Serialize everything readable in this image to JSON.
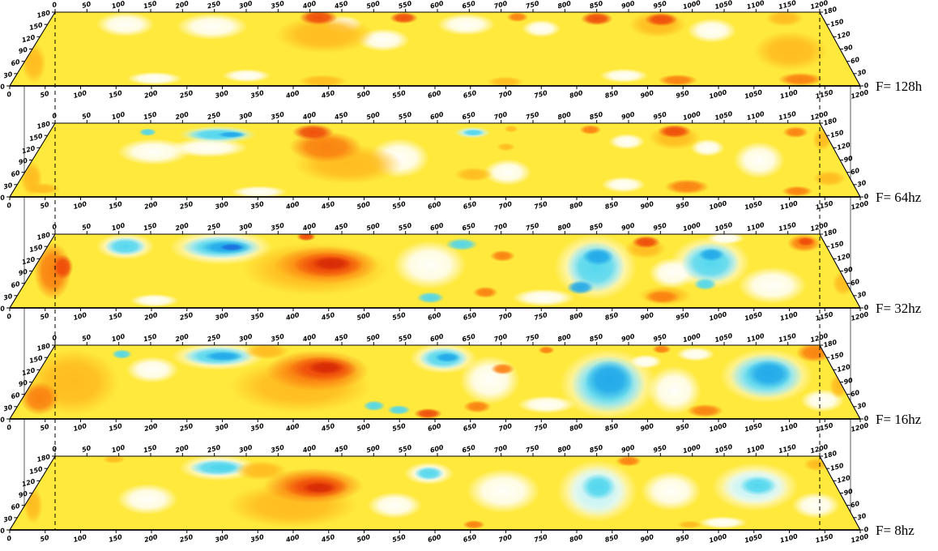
{
  "figure": {
    "description": "Stack of five spectral-decomposition amplitude slices at decreasing frequency",
    "panel_labels": [
      "F= 128h",
      "F= 64hz",
      "F= 32hz",
      "F= 16hz",
      "F= 8hz"
    ]
  },
  "axes": {
    "x": {
      "min": 0,
      "max": 1200,
      "step": 50,
      "ticks": [
        0,
        50,
        100,
        150,
        200,
        250,
        300,
        350,
        400,
        450,
        500,
        550,
        600,
        650,
        700,
        750,
        800,
        850,
        900,
        950,
        1000,
        1050,
        1100,
        1150,
        1200
      ]
    },
    "y": {
      "min": 0,
      "max": 180,
      "step": 30,
      "ticks": [
        0,
        30,
        60,
        90,
        120,
        150,
        180
      ]
    }
  },
  "reference_lines": {
    "style": "dashed-vertical",
    "at_top_axis_x": [
      0,
      1200
    ]
  },
  "colors": {
    "base": "#FFE93C",
    "white_zone": "#FFFFFF",
    "hot": {
      "h1": "#FFBB20",
      "h2": "#FA7F10",
      "h3": "#EE4A0A",
      "h4": "#D62A06"
    },
    "cold": {
      "c1": "#C8F4F6",
      "c2": "#50D6EE",
      "c3": "#21A8E9",
      "c4": "#1B70DF"
    },
    "axis": "#000000"
  },
  "anomaly_format": "[kind,x,y,rx,ry] in data units; kind h=hot(orange/red) c=cold(cyan/blue), higher digit = stronger",
  "chart_data": [
    {
      "type": "heatmap",
      "label": "F= 128h",
      "whites": [
        [
          120,
          150,
          45,
          28
        ],
        [
          255,
          145,
          55,
          30
        ],
        [
          455,
          150,
          30,
          20
        ],
        [
          520,
          112,
          40,
          26
        ],
        [
          645,
          150,
          45,
          25
        ],
        [
          760,
          140,
          30,
          20
        ],
        [
          1020,
          135,
          38,
          28
        ],
        [
          200,
          18,
          40,
          15
        ],
        [
          330,
          25,
          35,
          15
        ],
        [
          870,
          25,
          35,
          16
        ]
      ],
      "features": [
        [
          "h1",
          15,
          55,
          18,
          45
        ],
        [
          "h1",
          430,
          125,
          75,
          42
        ],
        [
          "h3",
          415,
          167,
          30,
          17
        ],
        [
          "h3",
          548,
          166,
          22,
          13
        ],
        [
          "h2",
          725,
          168,
          17,
          11
        ],
        [
          "h3",
          848,
          164,
          25,
          15
        ],
        [
          "h1",
          940,
          150,
          45,
          30
        ],
        [
          "h3",
          948,
          162,
          26,
          15
        ],
        [
          "h1",
          1125,
          85,
          55,
          45
        ],
        [
          "h1",
          1140,
          165,
          30,
          18
        ],
        [
          "h1",
          440,
          12,
          35,
          14
        ],
        [
          "h1",
          700,
          10,
          26,
          12
        ],
        [
          "h2",
          945,
          14,
          28,
          13
        ],
        [
          "h2",
          1120,
          16,
          32,
          15
        ]
      ]
    },
    {
      "type": "heatmap",
      "label": "F= 64hz",
      "whites": [
        [
          175,
          110,
          55,
          30
        ],
        [
          255,
          120,
          60,
          22
        ],
        [
          545,
          95,
          45,
          45
        ],
        [
          705,
          60,
          35,
          30
        ],
        [
          890,
          135,
          28,
          18
        ],
        [
          1010,
          120,
          26,
          20
        ],
        [
          1080,
          90,
          38,
          42
        ],
        [
          870,
          30,
          32,
          18
        ],
        [
          350,
          12,
          40,
          14
        ]
      ],
      "features": [
        [
          "c1",
          262,
          152,
          60,
          20
        ],
        [
          "c2",
          262,
          152,
          48,
          14
        ],
        [
          "c3",
          283,
          152,
          22,
          7
        ],
        [
          "c2",
          152,
          158,
          14,
          9
        ],
        [
          "c1",
          655,
          157,
          28,
          13
        ],
        [
          "c2",
          656,
          157,
          18,
          8
        ],
        [
          "h1",
          470,
          80,
          80,
          45
        ],
        [
          "h2",
          432,
          122,
          55,
          35
        ],
        [
          "h3",
          408,
          158,
          32,
          18
        ],
        [
          "h2",
          838,
          164,
          17,
          11
        ],
        [
          "h1",
          965,
          145,
          40,
          28
        ],
        [
          "h3",
          968,
          160,
          26,
          15
        ],
        [
          "h2",
          1155,
          158,
          20,
          13
        ],
        [
          "h1",
          705,
          122,
          14,
          9
        ],
        [
          "h1",
          715,
          166,
          11,
          8
        ],
        [
          "h2",
          960,
          25,
          32,
          17
        ],
        [
          "h2",
          1115,
          14,
          22,
          12
        ],
        [
          "h1",
          1170,
          45,
          24,
          18
        ],
        [
          "h1",
          655,
          55,
          28,
          16
        ],
        [
          "h1",
          15,
          45,
          16,
          40
        ],
        [
          "h1",
          40,
          20,
          25,
          13
        ],
        [
          "h1",
          1190,
          140,
          15,
          25
        ]
      ]
    },
    {
      "type": "heatmap",
      "label": "F= 32hz",
      "whites": [
        [
          590,
          105,
          55,
          55
        ],
        [
          755,
          25,
          45,
          20
        ],
        [
          838,
          100,
          62,
          75
        ],
        [
          1012,
          110,
          60,
          60
        ],
        [
          1090,
          55,
          50,
          42
        ],
        [
          1050,
          170,
          30,
          14
        ],
        [
          200,
          18,
          35,
          15
        ],
        [
          268,
          148,
          80,
          40
        ],
        [
          120,
          150,
          45,
          30
        ],
        [
          950,
          85,
          35,
          35
        ]
      ],
      "features": [
        [
          "c2",
          120,
          150,
          32,
          21
        ],
        [
          "c2",
          268,
          148,
          62,
          26
        ],
        [
          "c3",
          276,
          148,
          40,
          15
        ],
        [
          "c4",
          284,
          148,
          19,
          8
        ],
        [
          "c2",
          593,
          25,
          20,
          13
        ],
        [
          "c2",
          638,
          155,
          25,
          14
        ],
        [
          "c2",
          838,
          100,
          44,
          58
        ],
        [
          "c3",
          845,
          125,
          24,
          20
        ],
        [
          "c3",
          810,
          50,
          20,
          16
        ],
        [
          "c2",
          1012,
          110,
          44,
          46
        ],
        [
          "c3",
          1018,
          130,
          20,
          15
        ],
        [
          "c2",
          993,
          58,
          17,
          14
        ],
        [
          "h2",
          30,
          90,
          28,
          65
        ],
        [
          "h3",
          42,
          100,
          15,
          28
        ],
        [
          "h1",
          420,
          95,
          110,
          60
        ],
        [
          "h2",
          435,
          105,
          78,
          42
        ],
        [
          "h3",
          438,
          105,
          52,
          28
        ],
        [
          "h4",
          442,
          108,
          30,
          16
        ],
        [
          "h3",
          395,
          174,
          15,
          10
        ],
        [
          "h1",
          920,
          145,
          32,
          24
        ],
        [
          "h3",
          924,
          161,
          22,
          14
        ],
        [
          "h2",
          700,
          127,
          19,
          13
        ],
        [
          "h2",
          672,
          38,
          18,
          13
        ],
        [
          "h1",
          930,
          30,
          38,
          22
        ],
        [
          "h2",
          925,
          27,
          25,
          15
        ],
        [
          "h2",
          1168,
          158,
          26,
          20
        ],
        [
          "h3",
          1172,
          162,
          14,
          10
        ],
        [
          "h1",
          1195,
          60,
          16,
          28
        ]
      ]
    },
    {
      "type": "heatmap",
      "label": "F= 16hz",
      "whites": [
        [
          170,
          120,
          40,
          30
        ],
        [
          680,
          95,
          45,
          55
        ],
        [
          760,
          35,
          42,
          20
        ],
        [
          950,
          70,
          40,
          55
        ],
        [
          1000,
          158,
          30,
          16
        ],
        [
          1160,
          45,
          32,
          26
        ],
        [
          855,
          85,
          72,
          80
        ],
        [
          1095,
          105,
          70,
          62
        ],
        [
          262,
          153,
          72,
          32
        ],
        [
          610,
          148,
          52,
          35
        ],
        [
          920,
          140,
          25,
          16
        ]
      ],
      "features": [
        [
          "c2",
          112,
          158,
          16,
          11
        ],
        [
          "c2",
          262,
          153,
          55,
          22
        ],
        [
          "c3",
          270,
          153,
          30,
          11
        ],
        [
          "c2",
          512,
          32,
          16,
          12
        ],
        [
          "c2",
          548,
          22,
          17,
          11
        ],
        [
          "c2",
          610,
          148,
          38,
          25
        ],
        [
          "c3",
          616,
          150,
          20,
          11
        ],
        [
          "c2",
          855,
          85,
          55,
          65
        ],
        [
          "c3",
          858,
          95,
          36,
          45
        ],
        [
          "c2",
          1095,
          105,
          55,
          50
        ],
        [
          "c3",
          1100,
          110,
          34,
          32
        ],
        [
          "h1",
          60,
          90,
          68,
          75
        ],
        [
          "h2",
          25,
          50,
          28,
          38
        ],
        [
          "h1",
          400,
          80,
          105,
          60
        ],
        [
          "h2",
          420,
          118,
          78,
          46
        ],
        [
          "h3",
          428,
          122,
          52,
          28
        ],
        [
          "h4",
          432,
          125,
          28,
          15
        ],
        [
          "h1",
          335,
          165,
          35,
          18
        ],
        [
          "h3",
          590,
          13,
          20,
          12
        ],
        [
          "h2",
          950,
          170,
          15,
          10
        ],
        [
          "h2",
          770,
          168,
          13,
          9
        ],
        [
          "h2",
          700,
          122,
          18,
          13
        ],
        [
          "h2",
          660,
          30,
          20,
          14
        ],
        [
          "h2",
          985,
          20,
          26,
          15
        ],
        [
          "h2",
          1185,
          162,
          28,
          22
        ],
        [
          "h1",
          1195,
          80,
          14,
          28
        ]
      ]
    },
    {
      "type": "heatmap",
      "label": "F= 8hz",
      "whites": [
        [
          175,
          75,
          45,
          35
        ],
        [
          540,
          60,
          40,
          30
        ],
        [
          700,
          95,
          55,
          50
        ],
        [
          950,
          95,
          45,
          45
        ],
        [
          1010,
          18,
          35,
          14
        ],
        [
          1155,
          60,
          35,
          30
        ],
        [
          262,
          152,
          60,
          30
        ],
        [
          840,
          95,
          60,
          70
        ],
        [
          1078,
          105,
          65,
          55
        ],
        [
          588,
          138,
          38,
          26
        ]
      ],
      "features": [
        [
          "c2",
          262,
          152,
          44,
          19
        ],
        [
          "c2",
          270,
          152,
          22,
          9
        ],
        [
          "c2",
          588,
          138,
          23,
          16
        ],
        [
          "c1",
          840,
          95,
          45,
          58
        ],
        [
          "c2",
          843,
          105,
          26,
          30
        ],
        [
          "c1",
          1078,
          105,
          50,
          40
        ],
        [
          "c2",
          1083,
          108,
          28,
          22
        ],
        [
          "h1",
          390,
          60,
          95,
          50
        ],
        [
          "h1",
          330,
          145,
          40,
          22
        ],
        [
          "h2",
          415,
          108,
          75,
          40
        ],
        [
          "h3",
          420,
          105,
          48,
          25
        ],
        [
          "h4",
          424,
          103,
          26,
          13
        ],
        [
          "h2",
          655,
          13,
          16,
          10
        ],
        [
          "h2",
          898,
          168,
          20,
          12
        ],
        [
          "h1",
          962,
          13,
          18,
          9
        ],
        [
          "h1",
          1188,
          160,
          20,
          15
        ],
        [
          "h1",
          12,
          60,
          14,
          42
        ],
        [
          "h1",
          95,
          172,
          18,
          9
        ]
      ]
    }
  ]
}
